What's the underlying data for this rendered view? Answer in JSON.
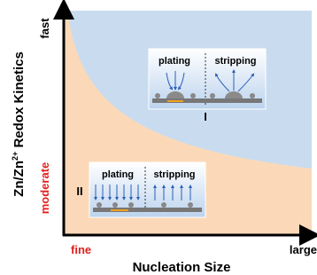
{
  "axes": {
    "y_label": {
      "before": "Zn/Zn",
      "sup": "2+",
      "after": " Redox Kinetics"
    },
    "y_top": "fast",
    "y_bottom": "moderate",
    "x_left": "fine",
    "x_right": "large",
    "x_label": "Nucleation Size"
  },
  "insets": [
    {
      "plating": "plating",
      "stripping": "stripping",
      "region": "I"
    },
    {
      "plating": "plating",
      "stripping": "stripping",
      "region": "II"
    }
  ]
}
